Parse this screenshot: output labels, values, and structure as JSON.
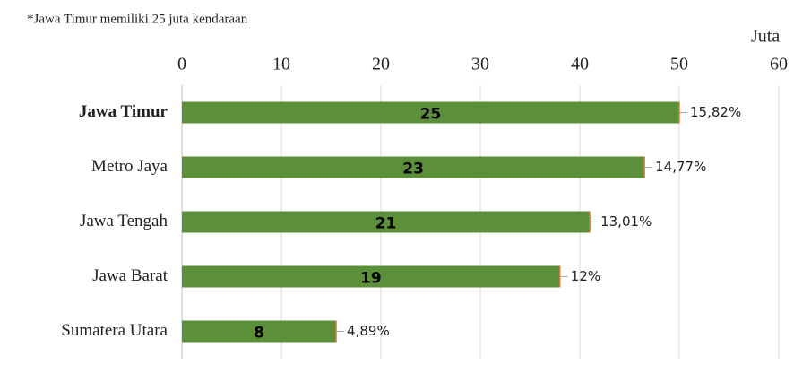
{
  "chart_data": {
    "type": "barh",
    "title": "*Jawa Timur memiliki 25 juta kendaraan",
    "unit_label": "Juta",
    "categories": [
      "Jawa Timur",
      "Metro Jaya",
      "Jawa Tengah",
      "Jawa Barat",
      "Sumatera Utara"
    ],
    "bold_categories": [
      "Jawa Timur"
    ],
    "values": [
      50,
      46.5,
      41,
      38,
      15.5
    ],
    "inner_labels": [
      "25",
      "23",
      "21",
      "19",
      "8"
    ],
    "percent_labels": [
      "15,82%",
      "14,77%",
      "13,01%",
      "12%",
      "4,89%"
    ],
    "color": "#5b8f3a",
    "xlim": [
      0,
      60
    ],
    "xticks": [
      0,
      10,
      20,
      30,
      40,
      50,
      60
    ],
    "grid": true
  }
}
